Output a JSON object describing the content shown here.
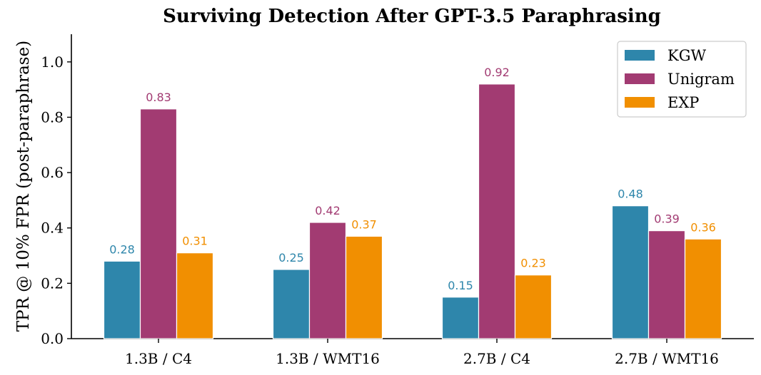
{
  "chart_data": {
    "type": "bar",
    "title": "Surviving Detection After GPT-3.5 Paraphrasing",
    "xlabel": "",
    "ylabel": "TPR @ 10% FPR (post-paraphrase)",
    "categories": [
      "1.3B / C4",
      "1.3B / WMT16",
      "2.7B / C4",
      "2.7B / WMT16"
    ],
    "series": [
      {
        "name": "KGW",
        "color": "#2e86ab",
        "values": [
          0.28,
          0.25,
          0.15,
          0.48
        ]
      },
      {
        "name": "Unigram",
        "color": "#a23b72",
        "values": [
          0.83,
          0.42,
          0.92,
          0.39
        ]
      },
      {
        "name": "EXP",
        "color": "#f18f01",
        "values": [
          0.31,
          0.37,
          0.23,
          0.36
        ]
      }
    ],
    "data_labels": [
      [
        "0.28",
        "0.25",
        "0.15",
        "0.48"
      ],
      [
        "0.83",
        "0.42",
        "0.92",
        "0.39"
      ],
      [
        "0.31",
        "0.37",
        "0.23",
        "0.36"
      ]
    ],
    "ylim": [
      0,
      1.1
    ],
    "yticks": [
      0.0,
      0.2,
      0.4,
      0.6,
      0.8,
      1.0
    ],
    "ytick_labels": [
      "0.0",
      "0.2",
      "0.4",
      "0.6",
      "0.8",
      "1.0"
    ],
    "grid": false,
    "legend_position": "top-right"
  }
}
